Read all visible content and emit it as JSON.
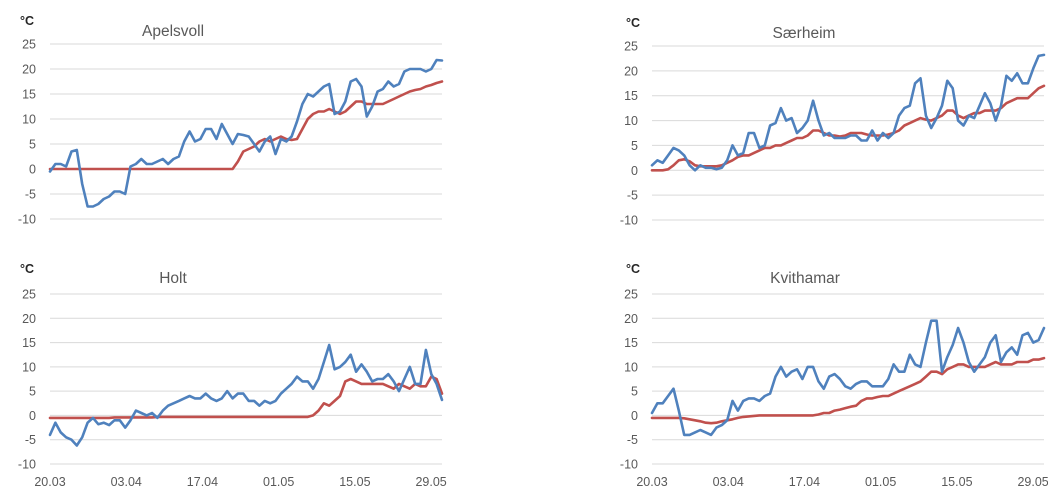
{
  "colors": {
    "series_blue": "#4f81bd",
    "series_red": "#c0504d",
    "grid": "#d9d9d9",
    "text": "#595959"
  },
  "chart_data": [
    {
      "type": "line",
      "title": "Apelsvoll",
      "unit_label": "°C",
      "ylim": [
        -10,
        25
      ],
      "yticks": [
        -10,
        -5,
        0,
        5,
        10,
        15,
        20,
        25
      ],
      "xlim": [
        "20.03",
        "31.05"
      ],
      "xticks": [
        "20.03",
        "03.04",
        "17.04",
        "01.05",
        "15.05",
        "29.05"
      ],
      "xtick_labels_shown": false,
      "grid": true,
      "series": [
        {
          "color": "blue",
          "values": [
            -0.5,
            1,
            1,
            0.5,
            3.5,
            3.8,
            -3,
            -7.5,
            -7.5,
            -7,
            -6,
            -5.5,
            -4.5,
            -4.5,
            -5,
            0.5,
            1,
            2,
            1,
            1,
            1.5,
            2,
            1,
            2,
            2.5,
            5.5,
            7.5,
            5.5,
            6,
            8,
            8,
            6,
            9,
            7,
            5,
            7,
            6.8,
            6.5,
            5,
            3.5,
            5.5,
            6.5,
            3,
            6,
            5.5,
            6.5,
            9.5,
            13,
            15,
            14.5,
            15.5,
            16.5,
            17,
            11,
            11.5,
            13.5,
            17.5,
            18,
            16.5,
            10.5,
            12.5,
            15.5,
            16,
            17.5,
            16.5,
            17,
            19.5,
            20,
            20,
            20,
            19.5,
            20,
            21.8,
            21.7
          ]
        },
        {
          "color": "red",
          "values": [
            0,
            0,
            0,
            0,
            0,
            0,
            0,
            0,
            0,
            0,
            0,
            0,
            0,
            0,
            0,
            0,
            0,
            0,
            0,
            0,
            0,
            0,
            0,
            0,
            0,
            0,
            0,
            0,
            0,
            0,
            0,
            0,
            0,
            0,
            0,
            1.5,
            3.5,
            4,
            4.5,
            5.5,
            6,
            5.5,
            6,
            6.5,
            6,
            5.8,
            6,
            8,
            10,
            11,
            11.5,
            11.5,
            12,
            11.5,
            11,
            11.5,
            12.5,
            13.5,
            13.5,
            13,
            13,
            13,
            13,
            13.5,
            14,
            14.5,
            15,
            15.5,
            15.8,
            16,
            16.5,
            16.8,
            17.2,
            17.5
          ]
        }
      ]
    },
    {
      "type": "line",
      "title": "Særheim",
      "unit_label": "°C",
      "ylim": [
        -10,
        25
      ],
      "yticks": [
        -10,
        -5,
        0,
        5,
        10,
        15,
        20,
        25
      ],
      "xlim": [
        "20.03",
        "31.05"
      ],
      "xticks": [
        "20.03",
        "03.04",
        "17.04",
        "01.05",
        "15.05",
        "29.05"
      ],
      "xtick_labels_shown": false,
      "grid": true,
      "series": [
        {
          "color": "blue",
          "values": [
            1,
            2,
            1.5,
            3,
            4.5,
            4,
            3,
            1,
            0,
            1,
            0.5,
            0.5,
            0.2,
            0.5,
            2,
            5,
            3,
            3.5,
            7.5,
            7.5,
            4.5,
            5,
            9,
            9.5,
            12.5,
            10,
            10.5,
            7.5,
            8.5,
            10,
            14,
            10,
            7,
            7.5,
            6.5,
            6.5,
            6.5,
            7,
            7,
            6,
            6,
            8,
            6,
            7.5,
            6.5,
            7.5,
            11,
            12.5,
            13,
            17.5,
            18.5,
            11,
            8.5,
            10.5,
            13,
            18,
            16.5,
            10,
            9,
            11,
            10.5,
            13,
            15.5,
            13.5,
            10,
            13,
            19,
            18,
            19.5,
            17.5,
            17.5,
            20.5,
            23,
            23.2
          ]
        },
        {
          "color": "red",
          "values": [
            0,
            0,
            0,
            0.2,
            1,
            2,
            2.2,
            1.8,
            1,
            0.8,
            0.8,
            0.8,
            0.8,
            1,
            1.5,
            2,
            2.7,
            3,
            3,
            3.5,
            4,
            4.5,
            4.5,
            5,
            5,
            5.5,
            6,
            6.5,
            6.5,
            7,
            8,
            8,
            7.5,
            7,
            7,
            6.8,
            7,
            7.5,
            7.5,
            7.5,
            7.2,
            7,
            7,
            7,
            7.2,
            7.5,
            8,
            9,
            9.5,
            10,
            10.5,
            10.2,
            10,
            10.5,
            11,
            12,
            12,
            11,
            10.5,
            11,
            11.5,
            11.5,
            12,
            12,
            12,
            12.5,
            13.5,
            14,
            14.5,
            14.5,
            14.5,
            15.5,
            16.5,
            17
          ]
        }
      ]
    },
    {
      "type": "line",
      "title": "Holt",
      "unit_label": "°C",
      "ylim": [
        -10,
        25
      ],
      "yticks": [
        -10,
        -5,
        0,
        5,
        10,
        15,
        20,
        25
      ],
      "xlim": [
        "20.03",
        "31.05"
      ],
      "xticks": [
        "20.03",
        "03.04",
        "17.04",
        "01.05",
        "15.05",
        "29.05"
      ],
      "grid": true,
      "series": [
        {
          "color": "blue",
          "values": [
            -4,
            -1.5,
            -3.5,
            -4.5,
            -5,
            -6.2,
            -4.5,
            -1.5,
            -0.5,
            -1.8,
            -1.5,
            -2,
            -1,
            -1,
            -2.5,
            -1,
            1,
            0.5,
            0,
            0.5,
            -0.5,
            1,
            2,
            2.5,
            3,
            3.5,
            4,
            3.5,
            3.5,
            4.5,
            3.5,
            3,
            3.5,
            5,
            3.5,
            4.5,
            4.5,
            3,
            3,
            2,
            3,
            2.5,
            3,
            4.5,
            5.5,
            6.5,
            8,
            7,
            7,
            5.5,
            7.5,
            11,
            14.5,
            9.5,
            10,
            11,
            12.5,
            9,
            10.5,
            9,
            7,
            7.5,
            7.5,
            8.5,
            7,
            5,
            7.5,
            10,
            6.5,
            6.5,
            13.5,
            8.5,
            6.5,
            3.2
          ]
        },
        {
          "color": "red",
          "values": [
            -0.5,
            -0.5,
            -0.5,
            -0.5,
            -0.5,
            -0.5,
            -0.5,
            -0.5,
            -0.5,
            -0.5,
            -0.5,
            -0.5,
            -0.4,
            -0.4,
            -0.4,
            -0.4,
            -0.4,
            -0.4,
            -0.4,
            -0.4,
            -0.3,
            -0.3,
            -0.3,
            -0.3,
            -0.3,
            -0.3,
            -0.3,
            -0.3,
            -0.3,
            -0.3,
            -0.3,
            -0.3,
            -0.3,
            -0.3,
            -0.3,
            -0.3,
            -0.3,
            -0.3,
            -0.3,
            -0.3,
            -0.3,
            -0.3,
            -0.3,
            -0.3,
            -0.3,
            -0.3,
            -0.3,
            -0.3,
            -0.3,
            0,
            1,
            2.5,
            2,
            3,
            4,
            7,
            7.5,
            7,
            6.5,
            6.5,
            6.5,
            6.5,
            6.5,
            6,
            5.5,
            6.5,
            6,
            5.5,
            6.5,
            6,
            6,
            8,
            7.5,
            4.5
          ]
        }
      ]
    },
    {
      "type": "line",
      "title": "Kvithamar",
      "unit_label": "°C",
      "ylim": [
        -10,
        25
      ],
      "yticks": [
        -10,
        -5,
        0,
        5,
        10,
        15,
        20,
        25
      ],
      "xlim": [
        "20.03",
        "31.05"
      ],
      "xticks": [
        "20.03",
        "03.04",
        "17.04",
        "01.05",
        "15.05",
        "29.05"
      ],
      "grid": true,
      "series": [
        {
          "color": "blue",
          "values": [
            0.5,
            2.5,
            2.5,
            4,
            5.5,
            1,
            -4,
            -4,
            -3.5,
            -3,
            -3.5,
            -4,
            -2.5,
            -2,
            -1,
            3,
            1,
            3,
            3.5,
            3.5,
            3,
            4,
            4.5,
            8,
            10,
            8,
            9,
            9.5,
            7.5,
            10,
            10,
            7,
            5.5,
            8,
            8.5,
            7.5,
            6,
            5.5,
            6.5,
            7,
            7,
            6,
            6,
            6,
            7.5,
            10.5,
            9,
            9,
            12.5,
            10.5,
            10,
            15,
            19.5,
            19.5,
            9,
            12,
            14.5,
            18,
            15,
            11,
            9,
            10.5,
            12,
            15,
            16.5,
            11,
            13,
            14,
            12.5,
            16.5,
            17,
            15,
            15.5,
            18
          ]
        },
        {
          "color": "red",
          "values": [
            -0.5,
            -0.5,
            -0.5,
            -0.5,
            -0.5,
            -0.5,
            -0.6,
            -0.8,
            -1,
            -1.2,
            -1.5,
            -1.6,
            -1.5,
            -1.2,
            -1,
            -0.8,
            -0.5,
            -0.3,
            -0.2,
            -0.1,
            0,
            0,
            0,
            0,
            0,
            0,
            0,
            0,
            0,
            0,
            0,
            0.2,
            0.5,
            0.5,
            1,
            1.2,
            1.5,
            1.8,
            2,
            3,
            3.5,
            3.5,
            3.8,
            4,
            4,
            4.5,
            5,
            5.5,
            6,
            6.5,
            7,
            8,
            9,
            9,
            8.5,
            9.5,
            10,
            10.5,
            10.5,
            10,
            10,
            10,
            10,
            10.5,
            11,
            10.5,
            10.5,
            10.5,
            11,
            11,
            11,
            11.5,
            11.5,
            11.8
          ]
        }
      ]
    }
  ]
}
